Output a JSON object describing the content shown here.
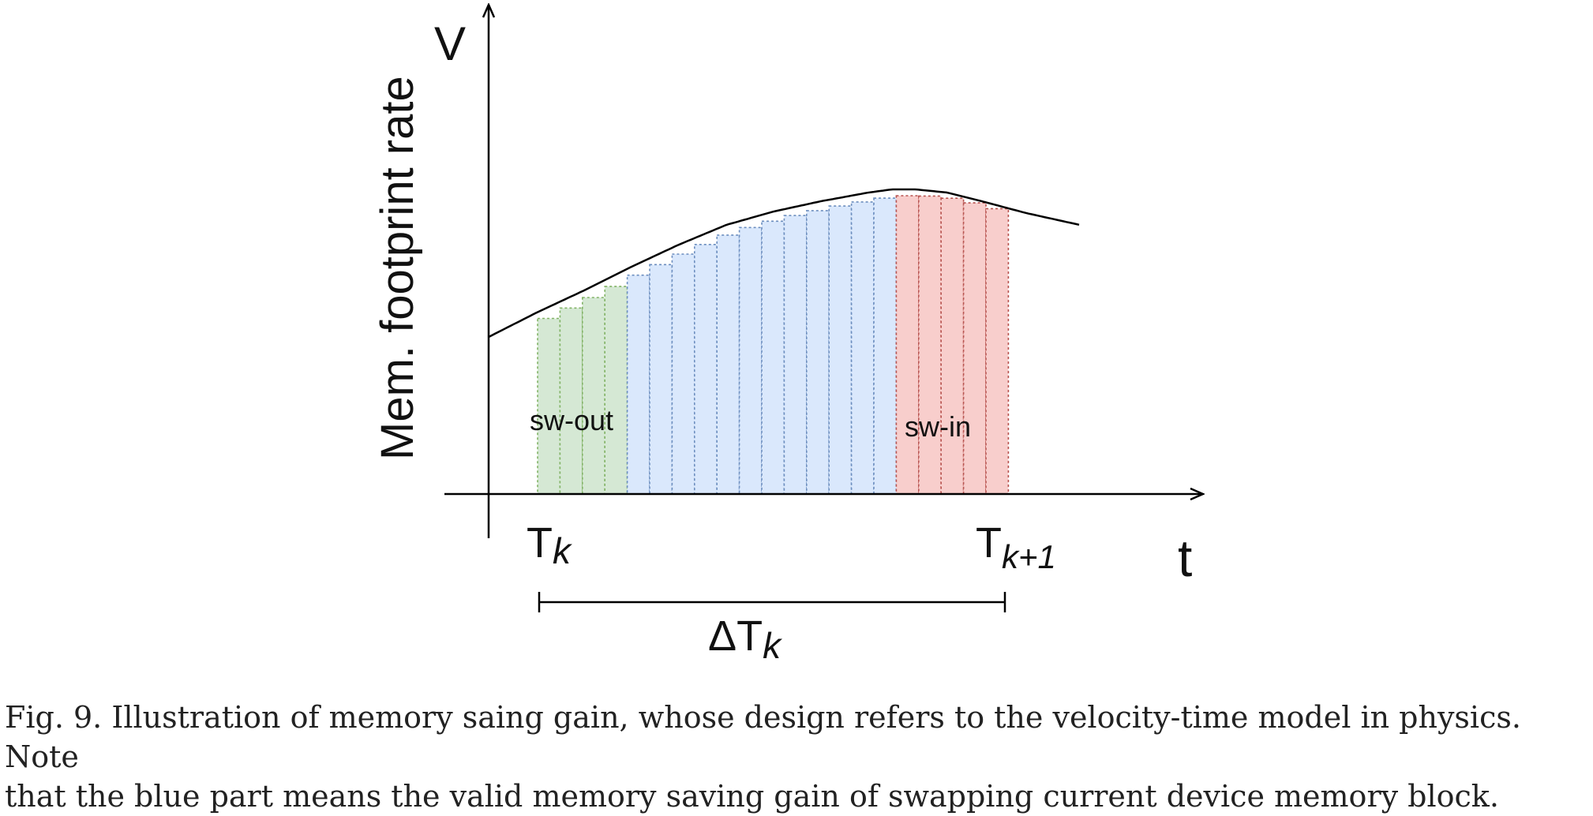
{
  "axes": {
    "y_symbol": "V",
    "y_label": "Mem. footprint rate",
    "x_symbol": "t"
  },
  "time_marks": {
    "start_base": "T",
    "start_sub": "k",
    "end_base": "T",
    "end_sub": "k+1",
    "interval_base": "ΔT",
    "interval_sub": "k"
  },
  "regions": {
    "swap_out": {
      "label": "sw-out",
      "fill": "#d5e8d4",
      "stroke": "#82b366",
      "bars": 4
    },
    "valid_gain": {
      "fill": "#dae8fc",
      "stroke": "#6c8ebf",
      "bars": 12
    },
    "swap_in": {
      "label": "sw-in",
      "fill": "#f8cecc",
      "stroke": "#b85450",
      "bars": 5
    }
  },
  "caption": {
    "line1": "Fig. 9.  Illustration of memory saing gain, whose design refers to the velocity-time model in physics. Note",
    "line2": "that the blue part means the valid memory saving gain of swapping current device memory block."
  }
}
